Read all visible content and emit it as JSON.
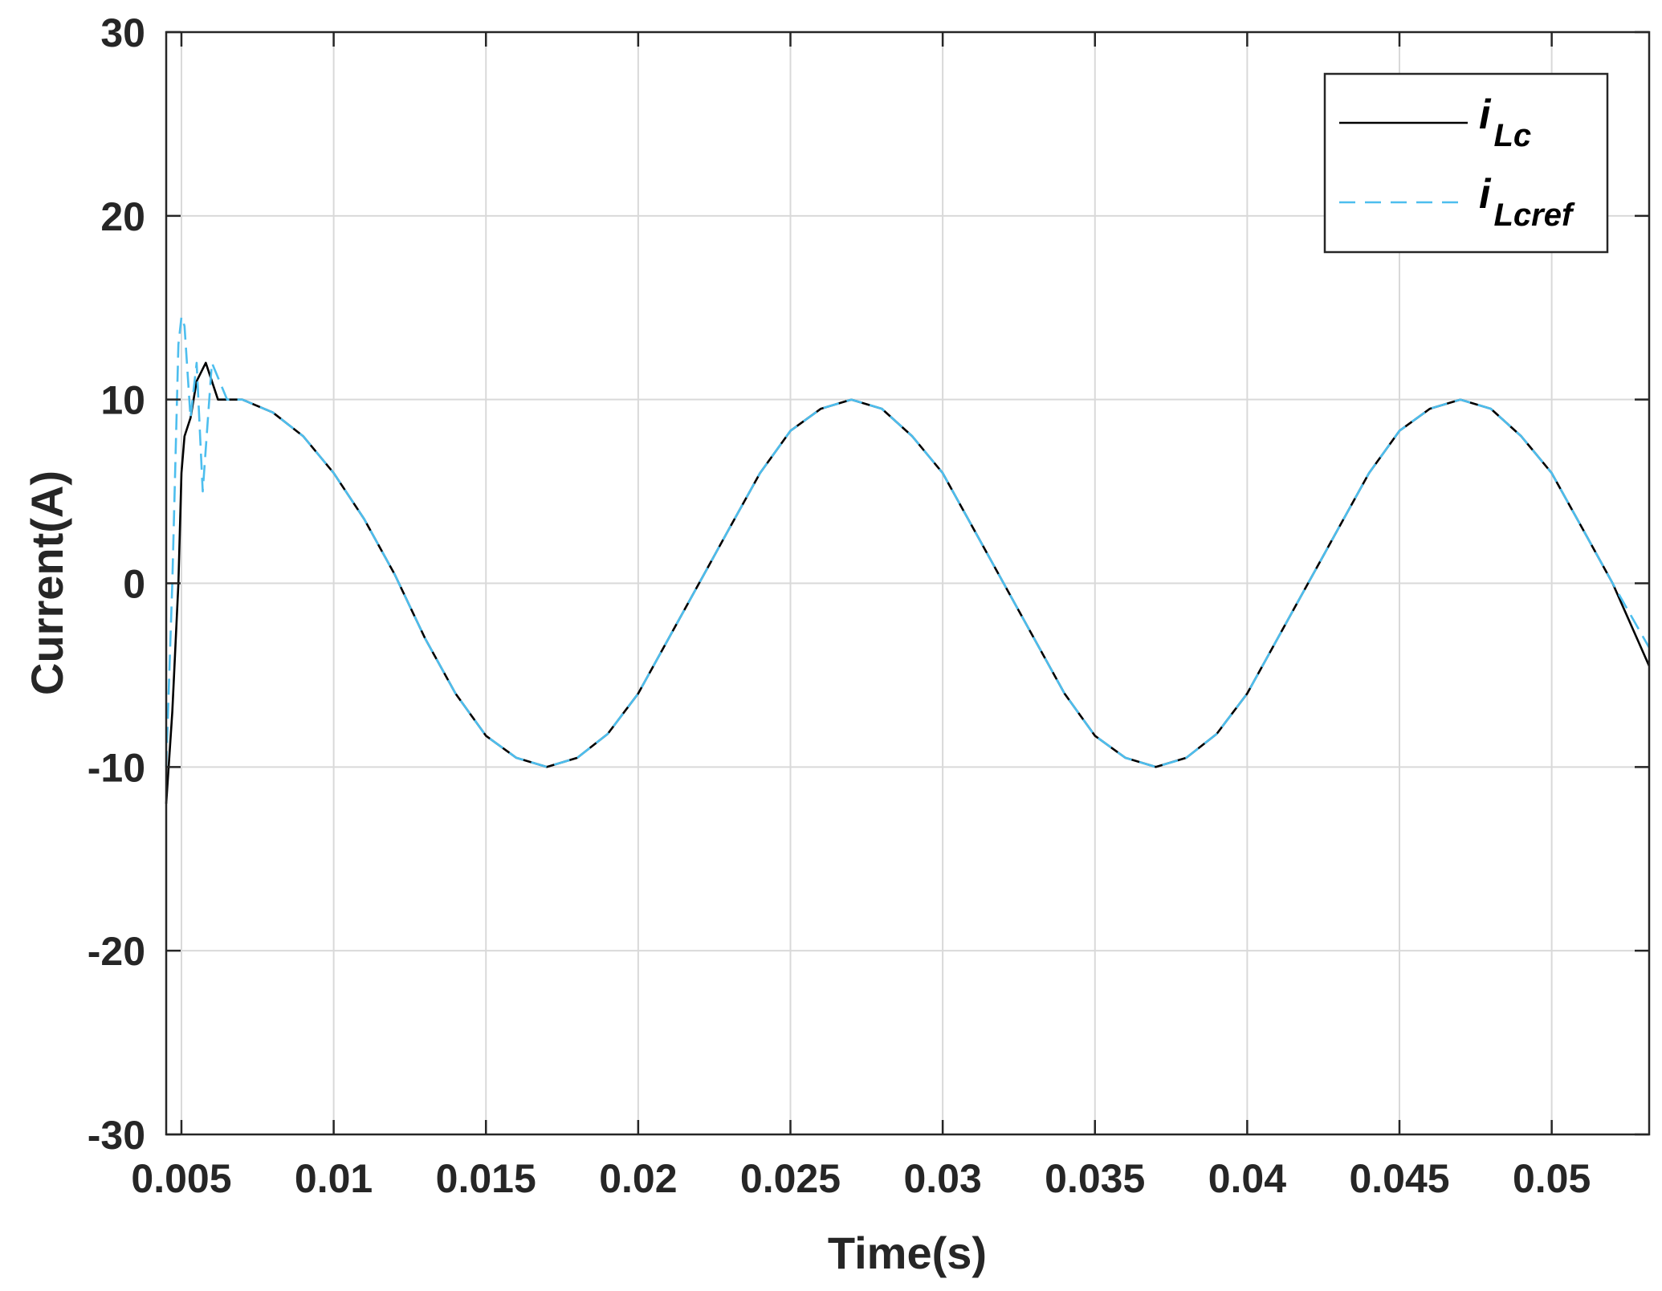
{
  "chart_data": {
    "type": "line",
    "title": "",
    "xlabel": "Time(s)",
    "ylabel": "Current(A)",
    "xlim": [
      0.0045,
      0.0532
    ],
    "ylim": [
      -30,
      30
    ],
    "xticks": [
      0.005,
      0.01,
      0.015,
      0.02,
      0.025,
      0.03,
      0.035,
      0.04,
      0.045,
      0.05
    ],
    "xtick_labels": [
      "0.005",
      "0.01",
      "0.015",
      "0.02",
      "0.025",
      "0.03",
      "0.035",
      "0.04",
      "0.045",
      "0.05"
    ],
    "yticks": [
      -30,
      -20,
      -10,
      0,
      10,
      20,
      30
    ],
    "ytick_labels": [
      "-30",
      "-20",
      "-10",
      "0",
      "10",
      "20",
      "30"
    ],
    "grid": true,
    "legend_position": "top-right",
    "series": [
      {
        "name": "i_Lc",
        "legend_main": "i",
        "legend_sub": "Lc",
        "color": "#000000",
        "style": "solid",
        "x": [
          0.0045,
          0.0047,
          0.0049,
          0.005,
          0.0051,
          0.0053,
          0.0055,
          0.0058,
          0.0062,
          0.007,
          0.008,
          0.009,
          0.01,
          0.011,
          0.012,
          0.013,
          0.014,
          0.015,
          0.016,
          0.017,
          0.018,
          0.019,
          0.02,
          0.021,
          0.022,
          0.023,
          0.024,
          0.025,
          0.026,
          0.027,
          0.028,
          0.029,
          0.03,
          0.031,
          0.032,
          0.033,
          0.034,
          0.035,
          0.036,
          0.037,
          0.038,
          0.039,
          0.04,
          0.041,
          0.042,
          0.043,
          0.044,
          0.045,
          0.046,
          0.047,
          0.048,
          0.049,
          0.05,
          0.051,
          0.052,
          0.0532
        ],
        "y": [
          -12,
          -7,
          0,
          6,
          8,
          9,
          11,
          12,
          10,
          10,
          9.3,
          8,
          6,
          3.5,
          0.5,
          -3,
          -6,
          -8.3,
          -9.5,
          -10,
          -9.5,
          -8.2,
          -6,
          -3,
          0,
          3,
          6,
          8.3,
          9.5,
          10,
          9.5,
          8,
          6,
          3,
          0,
          -3,
          -6,
          -8.3,
          -9.5,
          -10,
          -9.5,
          -8.2,
          -6,
          -3,
          0,
          3,
          6,
          8.3,
          9.5,
          10,
          9.5,
          8,
          6,
          3,
          0,
          -4.5
        ]
      },
      {
        "name": "i_Lcref",
        "legend_main": "i",
        "legend_sub": "Lcref",
        "color": "#4DBEEE",
        "style": "dashed",
        "x": [
          0.0045,
          0.0047,
          0.0049,
          0.005,
          0.0051,
          0.0053,
          0.0055,
          0.0057,
          0.006,
          0.0065,
          0.007,
          0.008,
          0.009,
          0.01,
          0.011,
          0.012,
          0.013,
          0.014,
          0.015,
          0.016,
          0.017,
          0.018,
          0.019,
          0.02,
          0.021,
          0.022,
          0.023,
          0.024,
          0.025,
          0.026,
          0.027,
          0.028,
          0.029,
          0.03,
          0.031,
          0.032,
          0.033,
          0.034,
          0.035,
          0.036,
          0.037,
          0.038,
          0.039,
          0.04,
          0.041,
          0.042,
          0.043,
          0.044,
          0.045,
          0.046,
          0.047,
          0.048,
          0.049,
          0.05,
          0.051,
          0.052,
          0.0532
        ],
        "y": [
          -10,
          0,
          13,
          14.5,
          14,
          9,
          12,
          5,
          12,
          10,
          10,
          9.3,
          8,
          6,
          3.5,
          0.5,
          -3,
          -6,
          -8.3,
          -9.5,
          -10,
          -9.5,
          -8.2,
          -6,
          -3,
          0,
          3,
          6,
          8.3,
          9.5,
          10,
          9.5,
          8,
          6,
          3,
          0,
          -3,
          -6,
          -8.3,
          -9.5,
          -10,
          -9.5,
          -8.2,
          -6,
          -3,
          0,
          3,
          6,
          8.3,
          9.5,
          10,
          9.5,
          8,
          6,
          3,
          0,
          -3.5
        ]
      }
    ]
  }
}
